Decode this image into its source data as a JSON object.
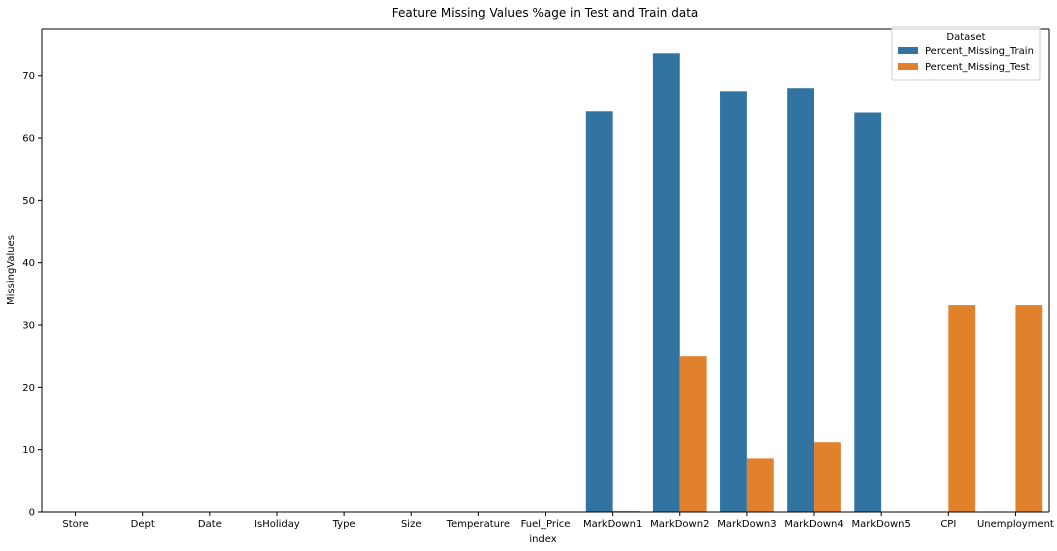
{
  "chart_data": {
    "type": "bar",
    "title": "Feature Missing Values %age in Test and Train data",
    "xlabel": "index",
    "ylabel": "MissingValues",
    "ylim": [
      0,
      77.5
    ],
    "yticks": [
      0,
      10,
      20,
      30,
      40,
      50,
      60,
      70
    ],
    "grid": false,
    "legend": {
      "title": "Dataset",
      "placement": "top-right"
    },
    "categories": [
      "Store",
      "Dept",
      "Date",
      "IsHoliday",
      "Type",
      "Size",
      "Temperature",
      "Fuel_Price",
      "MarkDown1",
      "MarkDown2",
      "MarkDown3",
      "MarkDown4",
      "MarkDown5",
      "CPI",
      "Unemployment"
    ],
    "series": [
      {
        "name": "Percent_Missing_Train",
        "color": "#3274a1",
        "values": [
          0,
          0,
          0,
          0,
          0,
          0,
          0,
          0,
          64.3,
          73.6,
          67.5,
          68.0,
          64.1,
          0,
          0
        ]
      },
      {
        "name": "Percent_Missing_Test",
        "color": "#e1812c",
        "values": [
          0,
          0,
          0,
          0,
          0,
          0,
          0,
          0,
          0.15,
          25.0,
          8.6,
          11.2,
          0,
          33.2,
          33.2
        ]
      }
    ]
  }
}
